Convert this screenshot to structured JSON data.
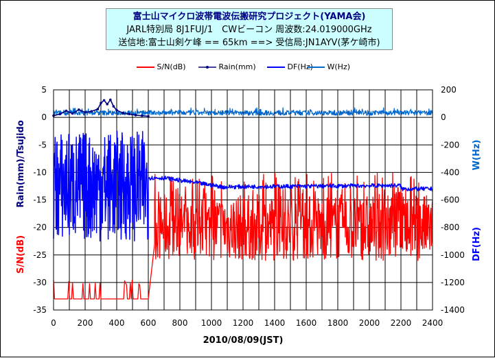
{
  "header": {
    "line1": "富士山マイクロ波帯電波伝搬研究プロジェクト(YAMA会)",
    "line2": "JARL特別局 8J1FUJ/1　CWビーコン 周波数:24.019000GHz",
    "line3": "送信地:富士山剣ケ峰 == 65km ==> 受信局:JN1AYV(茅ケ崎市)"
  },
  "legend": [
    {
      "name": "S/N(dB)",
      "color": "#ff0000"
    },
    {
      "name": "Rain(mm)",
      "color": "#000080"
    },
    {
      "name": "DF(Hz)",
      "color": "#0000ff"
    },
    {
      "name": "W(Hz)",
      "color": "#0066cc"
    }
  ],
  "axes": {
    "xlabel": "2010/08/09(JST)",
    "ylabel_left_top": "Rain(mm)/Tsujido",
    "ylabel_left_bottom": "S/N(dB)",
    "ylabel_right_top": "W(Hz)",
    "ylabel_right_bottom": "DF(Hz)"
  },
  "chart_data": {
    "type": "line",
    "x_range": [
      0,
      2400
    ],
    "x_ticks": [
      0,
      200,
      400,
      600,
      800,
      1000,
      1200,
      1400,
      1600,
      1800,
      2000,
      2200,
      2400
    ],
    "y_left_range": [
      -35,
      5
    ],
    "y_left_ticks": [
      5,
      0,
      -5,
      -10,
      -15,
      -20,
      -25,
      -30,
      -35
    ],
    "y_right_range": [
      -1400,
      200
    ],
    "y_right_ticks": [
      200,
      0,
      -200,
      -400,
      -600,
      -800,
      -1000,
      -1200,
      -1400
    ],
    "grid": true,
    "legend_position": "top",
    "series": [
      {
        "name": "S/N(dB)",
        "axis": "left",
        "color": "#ff0000",
        "segments": [
          {
            "x": [
              0,
              600
            ],
            "levels": [
              -33,
              -30
            ],
            "note_mode": "toggle"
          },
          {
            "x": [
              600,
              640
            ],
            "levels": [
              -33,
              -23
            ]
          },
          {
            "x": [
              640,
              2400
            ],
            "levels": [
              -26,
              -14
            ]
          }
        ]
      },
      {
        "name": "Rain(mm)",
        "axis": "left",
        "color": "#000080",
        "x": [
          0,
          40,
          80,
          120,
          160,
          200,
          240,
          280,
          300,
          320,
          340,
          360,
          380,
          400,
          440,
          480,
          520,
          560,
          600
        ],
        "values": [
          0.3,
          0.6,
          1.2,
          0.7,
          1.4,
          0.9,
          1.1,
          1.5,
          2.6,
          3.1,
          2.4,
          3.2,
          2.0,
          1.3,
          0.8,
          0.6,
          0.4,
          0.3,
          0.2
        ]
      },
      {
        "name": "DF(Hz)",
        "axis": "right",
        "color": "#0000ff",
        "segments": [
          {
            "x": [
              0,
              600
            ],
            "levels": [
              -850,
              -100
            ]
          },
          {
            "x": [
              600,
              2400
            ],
            "levels": [
              -430,
              -530
            ]
          }
        ]
      },
      {
        "name": "W(Hz)",
        "axis": "right",
        "color": "#0066cc",
        "segments": [
          {
            "x": [
              0,
              2400
            ],
            "levels": [
              -10,
              60
            ]
          }
        ]
      }
    ]
  }
}
